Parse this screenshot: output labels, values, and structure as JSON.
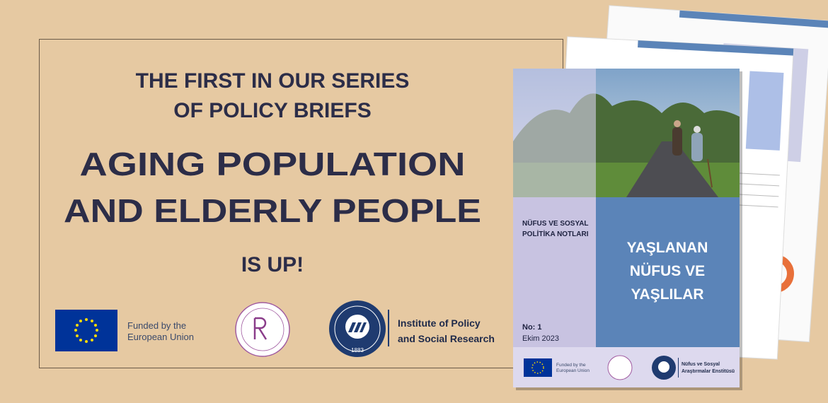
{
  "headline": {
    "intro": [
      "THE FIRST IN OUR SERIES",
      "OF POLICY BRIEFS"
    ],
    "title": [
      "AGING POPULATION",
      "AND ELDERLY PEOPLE"
    ],
    "tagline": "IS UP!"
  },
  "logos": {
    "eu": [
      "Funded by the",
      "European Union"
    ],
    "institute": [
      "Institute of Policy",
      "and Social Research"
    ],
    "university_year": "1883"
  },
  "cover": {
    "series": [
      "NÜFUS VE SOSYAL",
      "POLİTİKA NOTLARI"
    ],
    "title": [
      "YAŞLANAN",
      "NÜFUS VE",
      "YAŞLILAR"
    ],
    "number": "No: 1",
    "date": "Ekim 2023",
    "eu": [
      "Funded by the",
      "European Union"
    ],
    "institute": [
      "Nüfus ve Sosyal",
      "Araştırmalar Enstitüsü"
    ]
  }
}
